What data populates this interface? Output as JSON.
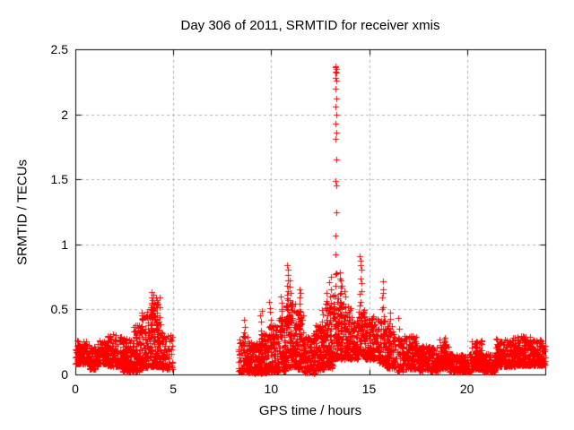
{
  "chart_data": {
    "type": "scatter",
    "title": "Day 306 of 2011, SRMTID for receiver xmis",
    "xlabel": "GPS time / hours",
    "ylabel": "SRMTID / TECUs",
    "xlim": [
      0,
      24
    ],
    "ylim": [
      0,
      2.5
    ],
    "xticks": {
      "values": [
        0,
        5,
        10,
        15,
        20
      ],
      "labels": [
        "0",
        "5",
        "10",
        "15",
        "20"
      ]
    },
    "yticks": {
      "values": [
        0,
        0.5,
        1,
        1.5,
        2,
        2.5
      ],
      "labels": [
        "0",
        "0.5",
        "1",
        "1.5",
        "2",
        "2.5"
      ]
    },
    "grid": {
      "on": true,
      "x_values": [
        5,
        10,
        15,
        20
      ],
      "y_values": [
        0.5,
        1,
        1.5,
        2
      ],
      "color": "#b0b0b0",
      "dash": [
        3,
        3
      ]
    },
    "marker": {
      "shape": "plus",
      "color": "#ff0000",
      "size": 7
    },
    "border_color": "#000000",
    "legend": "none",
    "data_gap_hours": [
      4.95,
      8.35
    ],
    "peak": {
      "time_hours": 13.3,
      "value_tecu": 2.37
    },
    "noise_band": [
      [
        0.0,
        0.7,
        0.08,
        0.26,
        120
      ],
      [
        0.7,
        1.15,
        0.04,
        0.22,
        80
      ],
      [
        1.15,
        1.65,
        0.08,
        0.26,
        90
      ],
      [
        1.65,
        2.35,
        0.06,
        0.31,
        130
      ],
      [
        2.35,
        2.85,
        0.02,
        0.28,
        100
      ],
      [
        2.85,
        3.35,
        0.02,
        0.38,
        110
      ],
      [
        3.35,
        3.85,
        0.05,
        0.48,
        110
      ],
      [
        3.85,
        4.35,
        0.06,
        0.6,
        120
      ],
      [
        4.35,
        4.95,
        0.04,
        0.33,
        80
      ],
      [
        8.35,
        8.8,
        0.02,
        0.3,
        75
      ],
      [
        8.8,
        9.35,
        0.01,
        0.25,
        110
      ],
      [
        9.35,
        9.8,
        0.01,
        0.32,
        95
      ],
      [
        9.8,
        10.35,
        0.02,
        0.38,
        115
      ],
      [
        10.35,
        10.75,
        0.03,
        0.45,
        85
      ],
      [
        10.75,
        11.25,
        0.05,
        0.6,
        110
      ],
      [
        11.25,
        11.65,
        0.04,
        0.5,
        85
      ],
      [
        11.65,
        12.25,
        0.01,
        0.32,
        120
      ],
      [
        12.25,
        12.75,
        0.03,
        0.38,
        100
      ],
      [
        12.75,
        13.15,
        0.05,
        0.55,
        85
      ],
      [
        13.15,
        13.45,
        0.12,
        0.62,
        70
      ],
      [
        13.45,
        14.05,
        0.12,
        0.55,
        110
      ],
      [
        14.05,
        14.45,
        0.12,
        0.42,
        75
      ],
      [
        14.45,
        14.75,
        0.15,
        0.5,
        55
      ],
      [
        14.75,
        15.45,
        0.12,
        0.45,
        135
      ],
      [
        15.45,
        15.85,
        0.08,
        0.42,
        75
      ],
      [
        15.85,
        16.35,
        0.05,
        0.38,
        85
      ],
      [
        16.35,
        16.7,
        0.02,
        0.3,
        40
      ],
      [
        16.7,
        17.45,
        0.04,
        0.3,
        130
      ],
      [
        17.45,
        18.6,
        0.03,
        0.22,
        200
      ],
      [
        18.6,
        19.1,
        0.05,
        0.27,
        90
      ],
      [
        19.1,
        20.25,
        0.02,
        0.16,
        190
      ],
      [
        20.25,
        20.75,
        0.04,
        0.26,
        85
      ],
      [
        20.75,
        21.45,
        0.02,
        0.16,
        115
      ],
      [
        21.45,
        22.55,
        0.06,
        0.28,
        200
      ],
      [
        22.55,
        23.25,
        0.07,
        0.3,
        130
      ],
      [
        23.25,
        24.0,
        0.07,
        0.27,
        135
      ]
    ],
    "spike_columns": [
      [
        3.95,
        0.35,
        0.65,
        8
      ],
      [
        4.15,
        0.3,
        0.58,
        6
      ],
      [
        8.6,
        0.18,
        0.43,
        6
      ],
      [
        9.5,
        0.2,
        0.5,
        7
      ],
      [
        9.95,
        0.25,
        0.56,
        8
      ],
      [
        10.5,
        0.3,
        0.6,
        8
      ],
      [
        10.85,
        0.35,
        0.84,
        14
      ],
      [
        11.0,
        0.3,
        0.72,
        10
      ],
      [
        11.45,
        0.3,
        0.67,
        10
      ],
      [
        12.6,
        0.25,
        0.5,
        6
      ],
      [
        12.85,
        0.3,
        0.62,
        8
      ],
      [
        13.0,
        0.35,
        0.76,
        9
      ],
      [
        13.5,
        0.4,
        0.78,
        8
      ],
      [
        13.6,
        0.35,
        0.72,
        8
      ],
      [
        13.75,
        0.3,
        0.65,
        7
      ],
      [
        14.1,
        0.25,
        0.5,
        5
      ],
      [
        14.55,
        0.35,
        0.92,
        14
      ],
      [
        15.7,
        0.28,
        0.7,
        11
      ],
      [
        16.05,
        0.2,
        0.48,
        7
      ],
      [
        16.5,
        0.08,
        0.42,
        6
      ],
      [
        17.15,
        0.12,
        0.3,
        5
      ],
      [
        18.85,
        0.1,
        0.27,
        4
      ],
      [
        20.5,
        0.08,
        0.26,
        4
      ],
      [
        22.3,
        0.12,
        0.28,
        4
      ],
      [
        23.0,
        0.12,
        0.3,
        4
      ]
    ],
    "main_spike_points": [
      [
        13.28,
        2.37
      ],
      [
        13.3,
        2.36
      ],
      [
        13.32,
        2.35
      ],
      [
        13.29,
        2.33
      ],
      [
        13.31,
        2.32
      ],
      [
        13.3,
        2.28
      ],
      [
        13.32,
        2.26
      ],
      [
        13.3,
        2.2
      ],
      [
        13.31,
        2.12
      ],
      [
        13.3,
        2.06
      ],
      [
        13.31,
        2.0
      ],
      [
        13.3,
        1.93
      ],
      [
        13.32,
        1.86
      ],
      [
        13.3,
        1.81
      ],
      [
        13.31,
        1.65
      ],
      [
        13.3,
        1.49
      ],
      [
        13.32,
        1.45
      ],
      [
        13.31,
        1.25
      ],
      [
        13.3,
        1.07
      ],
      [
        13.28,
        0.92
      ],
      [
        13.31,
        0.78
      ],
      [
        13.26,
        0.77
      ],
      [
        13.27,
        0.68
      ]
    ]
  }
}
